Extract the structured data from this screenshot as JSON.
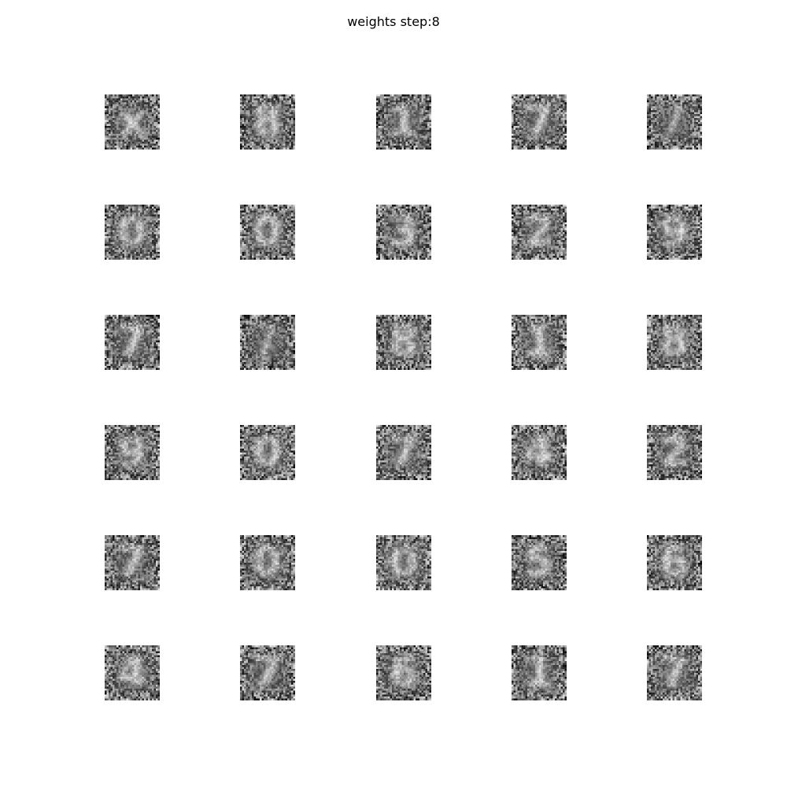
{
  "figure": {
    "title": "weights step:8",
    "grid": {
      "rows": 6,
      "cols": 5
    },
    "colormap": "grayscale",
    "background": "#ffffff",
    "tiles": [
      {
        "digit": "x"
      },
      {
        "digit": "8"
      },
      {
        "digit": "1"
      },
      {
        "digit": "7"
      },
      {
        "digit": "/"
      },
      {
        "digit": "0"
      },
      {
        "digit": "0"
      },
      {
        "digit": "3"
      },
      {
        "digit": "2"
      },
      {
        "digit": "9"
      },
      {
        "digit": "7"
      },
      {
        "digit": "/"
      },
      {
        "digit": "8"
      },
      {
        "digit": "1"
      },
      {
        "digit": "8"
      },
      {
        "digit": "9"
      },
      {
        "digit": "0"
      },
      {
        "digit": "7"
      },
      {
        "digit": "4"
      },
      {
        "digit": "2"
      },
      {
        "digit": "7"
      },
      {
        "digit": "0"
      },
      {
        "digit": "0"
      },
      {
        "digit": "5"
      },
      {
        "digit": "6"
      },
      {
        "digit": "4"
      },
      {
        "digit": "7"
      },
      {
        "digit": "6"
      },
      {
        "digit": "1"
      },
      {
        "digit": "7"
      }
    ]
  }
}
